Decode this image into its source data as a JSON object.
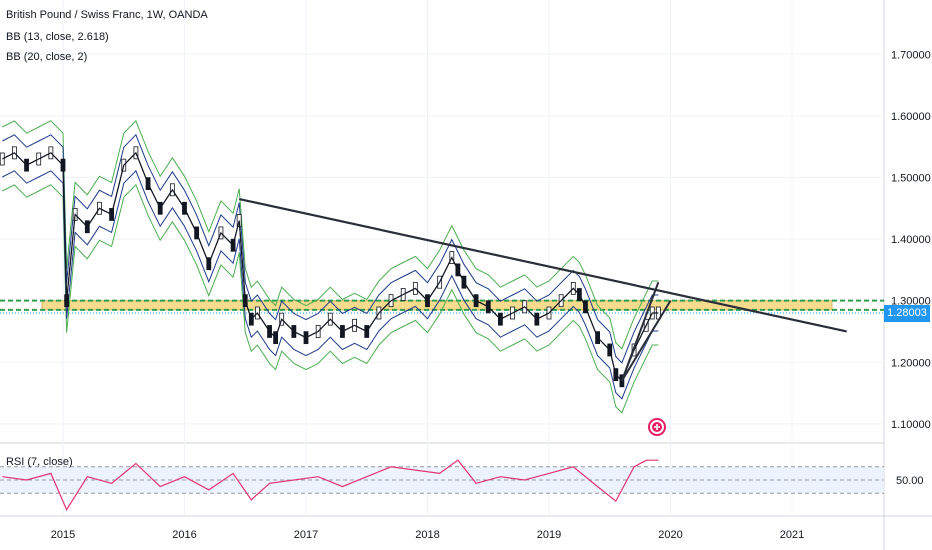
{
  "header": {
    "symbol_line": "British Pound / Swiss Franc, 1W, OANDA",
    "indicator_1": "BB (13, close, 2.618)",
    "indicator_2": "BB (20, close, 2)"
  },
  "rsi_panel": {
    "label": "RSI (7, close)",
    "level_label": "50.00"
  },
  "last_price_label": "1.28003",
  "chart_data": {
    "type": "line",
    "title": "British Pound / Swiss Franc, 1W, OANDA",
    "ylim": [
      1.08,
      1.79
    ],
    "x_ticks": [
      "2015",
      "2016",
      "2017",
      "2018",
      "2019",
      "2020",
      "2021"
    ],
    "y_ticks": [
      "1.70000",
      "1.60000",
      "1.50000",
      "1.40000",
      "1.30000",
      "1.20000",
      "1.10000"
    ],
    "x_tick_years": [
      2015.0,
      2016.0,
      2017.0,
      2018.0,
      2019.0,
      2020.0,
      2021.0
    ],
    "y_tick_values": [
      1.7,
      1.6,
      1.5,
      1.4,
      1.3,
      1.2,
      1.1
    ],
    "price_series": {
      "name": "GBPCHF",
      "x": [
        2014.5,
        2014.6,
        2014.7,
        2014.8,
        2014.9,
        2015.0,
        2015.03,
        2015.1,
        2015.2,
        2015.3,
        2015.4,
        2015.5,
        2015.6,
        2015.7,
        2015.8,
        2015.9,
        2016.0,
        2016.1,
        2016.2,
        2016.3,
        2016.4,
        2016.45,
        2016.5,
        2016.55,
        2016.6,
        2016.7,
        2016.75,
        2016.8,
        2016.9,
        2017.0,
        2017.1,
        2017.2,
        2017.3,
        2017.4,
        2017.5,
        2017.6,
        2017.7,
        2017.8,
        2017.9,
        2018.0,
        2018.1,
        2018.2,
        2018.25,
        2018.3,
        2018.4,
        2018.5,
        2018.6,
        2018.7,
        2018.8,
        2018.9,
        2019.0,
        2019.1,
        2019.2,
        2019.25,
        2019.3,
        2019.4,
        2019.5,
        2019.55,
        2019.6,
        2019.7,
        2019.8,
        2019.85,
        2019.9
      ],
      "y": [
        1.53,
        1.54,
        1.52,
        1.53,
        1.54,
        1.52,
        1.3,
        1.44,
        1.42,
        1.45,
        1.44,
        1.52,
        1.54,
        1.49,
        1.45,
        1.48,
        1.45,
        1.41,
        1.36,
        1.41,
        1.39,
        1.43,
        1.3,
        1.27,
        1.28,
        1.25,
        1.24,
        1.27,
        1.25,
        1.24,
        1.25,
        1.27,
        1.25,
        1.26,
        1.25,
        1.28,
        1.3,
        1.31,
        1.32,
        1.3,
        1.33,
        1.37,
        1.35,
        1.33,
        1.3,
        1.29,
        1.27,
        1.28,
        1.29,
        1.27,
        1.28,
        1.3,
        1.32,
        1.31,
        1.29,
        1.24,
        1.22,
        1.18,
        1.17,
        1.22,
        1.26,
        1.28,
        1.28
      ]
    },
    "horizontal_levels": [
      1.3,
      1.285
    ],
    "zone": {
      "from": 1.285,
      "to": 1.3
    },
    "trendline": {
      "x": [
        2016.45,
        2021.45
      ],
      "y": [
        1.465,
        1.25
      ]
    },
    "rsi": {
      "ylim": [
        0,
        100
      ],
      "levels": [
        30,
        50,
        70
      ],
      "x": [
        2014.5,
        2014.7,
        2014.9,
        2015.03,
        2015.2,
        2015.4,
        2015.6,
        2015.8,
        2016.0,
        2016.2,
        2016.4,
        2016.55,
        2016.7,
        2016.9,
        2017.1,
        2017.3,
        2017.5,
        2017.7,
        2017.9,
        2018.1,
        2018.25,
        2018.4,
        2018.6,
        2018.8,
        2019.0,
        2019.2,
        2019.4,
        2019.55,
        2019.7,
        2019.8,
        2019.9
      ],
      "y": [
        55,
        50,
        60,
        5,
        55,
        45,
        75,
        40,
        55,
        35,
        60,
        20,
        45,
        50,
        55,
        40,
        55,
        70,
        65,
        60,
        80,
        45,
        55,
        50,
        60,
        70,
        40,
        18,
        70,
        80,
        80
      ]
    }
  }
}
